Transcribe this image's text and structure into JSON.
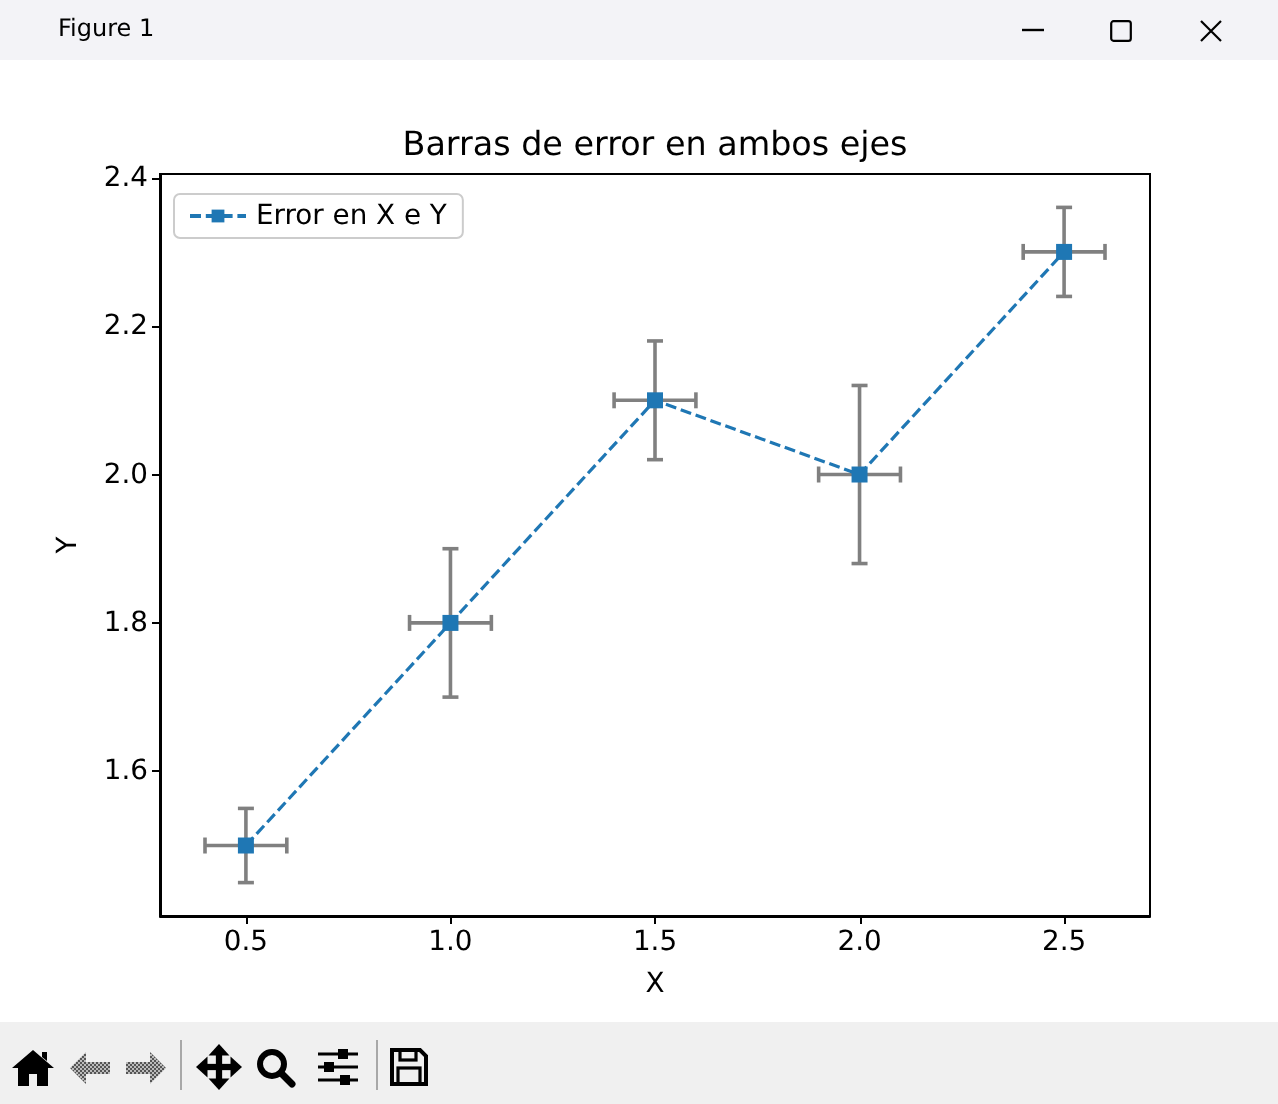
{
  "chart_data": {
    "type": "line",
    "title": "Barras de error en ambos ejes",
    "xlabel": "X",
    "ylabel": "Y",
    "x": [
      0.5,
      1,
      1.5,
      2,
      2.5
    ],
    "series": [
      {
        "name": "Error en X e Y",
        "color": "#1f77b4",
        "values": [
          1.5,
          1.8,
          2.1,
          2.0,
          2.3
        ],
        "errors": [
          0.05,
          0.1,
          0.08,
          0.12,
          0.06
        ],
        "xerrors": [
          0.1,
          0.1,
          0.1,
          0.1,
          0.1
        ]
      }
    ],
    "xlim": [
      0.29,
      2.71
    ],
    "ylim": [
      1.405,
      2.405
    ],
    "xticks": [
      0.5,
      {
        "value": 1,
        "label": "1.0"
      },
      1.5,
      {
        "value": 2,
        "label": "2.0"
      },
      2.5
    ],
    "yticks": [
      1.6,
      1.8,
      {
        "value": 2,
        "label": "2.0"
      },
      2.2,
      2.4
    ],
    "legend": "top left",
    "marker": "square",
    "line_style": "dashed",
    "annotations": [
      "Figure 1"
    ]
  }
}
